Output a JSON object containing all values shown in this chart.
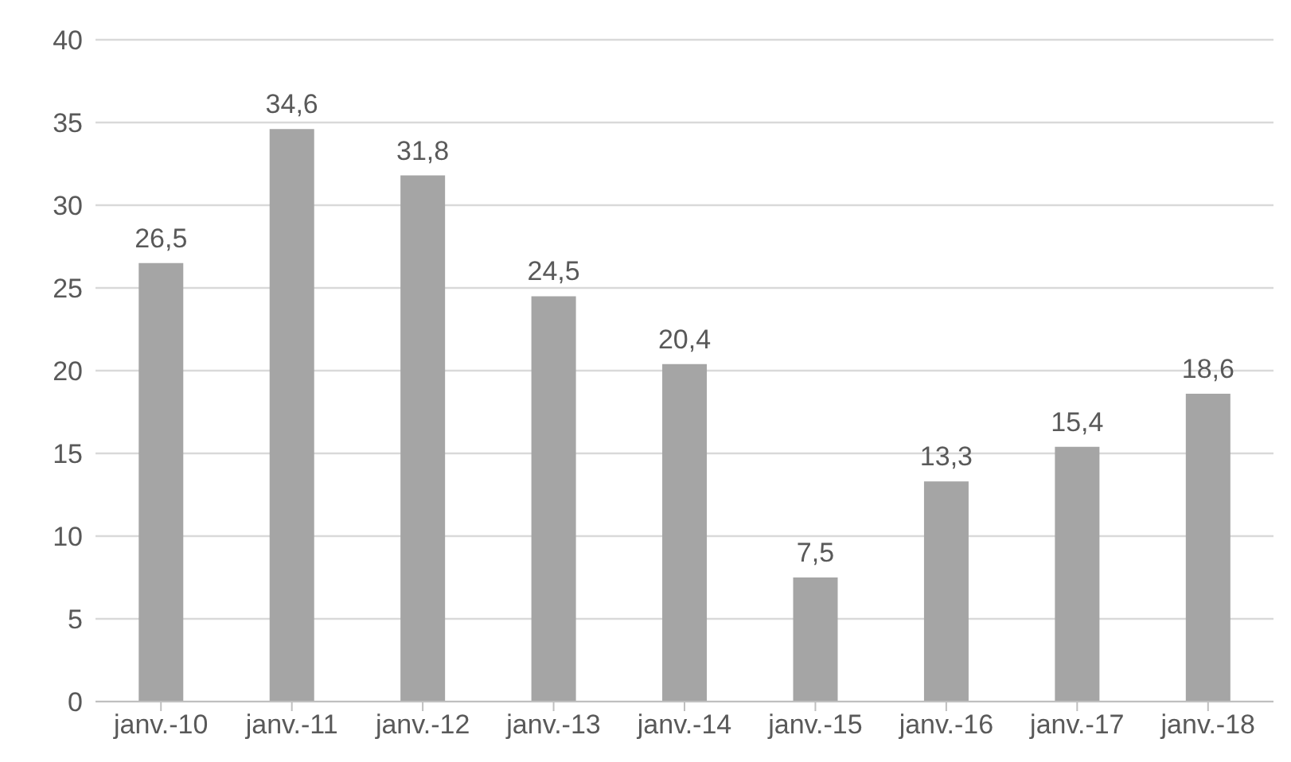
{
  "chart_data": {
    "type": "bar",
    "categories": [
      "janv.-10",
      "janv.-11",
      "janv.-12",
      "janv.-13",
      "janv.-14",
      "janv.-15",
      "janv.-16",
      "janv.-17",
      "janv.-18"
    ],
    "values": [
      26.5,
      34.6,
      31.8,
      24.5,
      20.4,
      7.5,
      13.3,
      15.4,
      18.6
    ],
    "value_labels": [
      "26,5",
      "34,6",
      "31,8",
      "24,5",
      "20,4",
      "7,5",
      "13,3",
      "15,4",
      "18,6"
    ],
    "color": "#a5a5a5",
    "ylim": [
      0,
      40
    ],
    "yticks": [
      0,
      5,
      10,
      15,
      20,
      25,
      30,
      35,
      40
    ],
    "grid": "y",
    "legend": false
  }
}
